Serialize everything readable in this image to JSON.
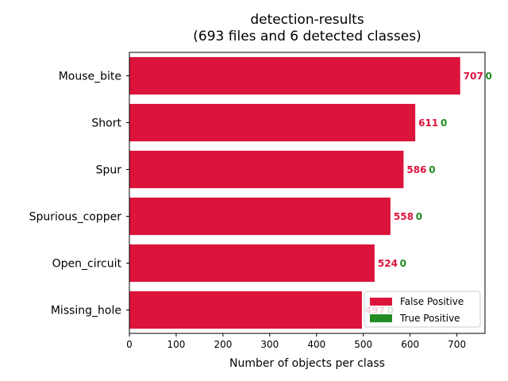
{
  "chart_data": {
    "type": "bar",
    "orientation": "horizontal",
    "title": "detection-results",
    "subtitle": "(693 files and 6 detected classes)",
    "xlabel": "Number of objects per class",
    "ylabel": "",
    "xlim": [
      0,
      760
    ],
    "xticks": [
      0,
      100,
      200,
      300,
      400,
      500,
      600,
      700
    ],
    "categories": [
      "Mouse_bite",
      "Short",
      "Spur",
      "Spurious_copper",
      "Open_circuit",
      "Missing_hole"
    ],
    "series": [
      {
        "name": "False Positive",
        "color": "#dc143c",
        "values": [
          707,
          611,
          586,
          558,
          524,
          497
        ]
      },
      {
        "name": "True Positive",
        "color": "#228b22",
        "values": [
          0,
          0,
          0,
          0,
          0,
          0
        ]
      }
    ],
    "legend_position": "lower-right",
    "grid": false
  }
}
